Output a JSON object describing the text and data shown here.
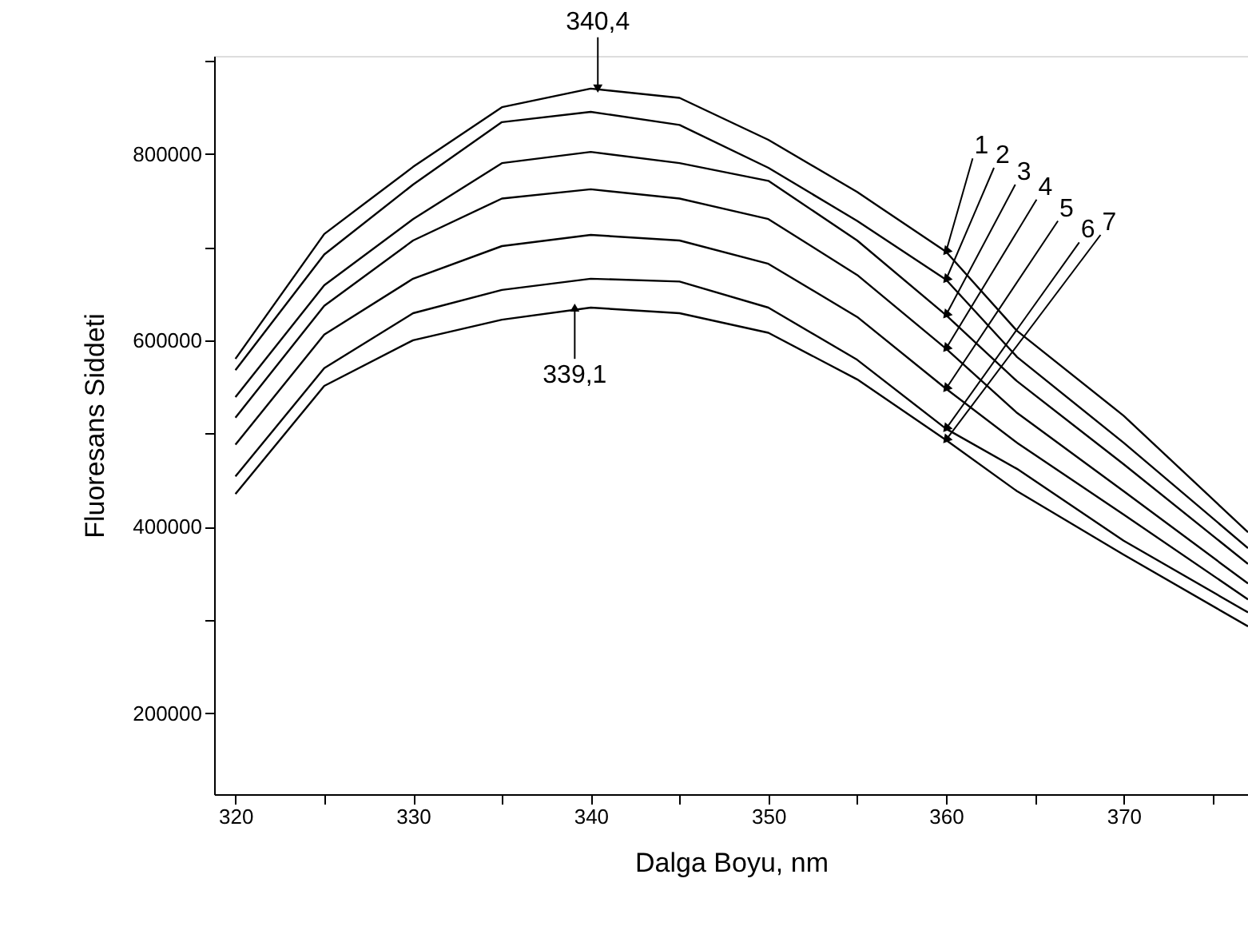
{
  "chart_data": {
    "type": "line",
    "xlabel": "Dalga Boyu, nm",
    "ylabel": "Fluoresans Siddeti",
    "x": [
      320,
      325,
      330,
      335,
      340,
      345,
      350,
      355,
      360,
      364,
      370,
      377
    ],
    "series": [
      {
        "name": "1",
        "color": "#000000",
        "values": [
          580000,
          714000,
          786000,
          850000,
          870000,
          860000,
          815000,
          759000,
          695000,
          610000,
          519000,
          394000
        ]
      },
      {
        "name": "2",
        "color": "#000000",
        "values": [
          568000,
          692000,
          767000,
          834000,
          845000,
          831000,
          785000,
          728000,
          665000,
          582000,
          490000,
          377000
        ]
      },
      {
        "name": "3",
        "color": "#000000",
        "values": [
          539000,
          659000,
          730000,
          790000,
          802000,
          790000,
          771000,
          707000,
          627000,
          556000,
          467000,
          360000
        ]
      },
      {
        "name": "4",
        "color": "#000000",
        "values": [
          517000,
          637000,
          707000,
          752000,
          762000,
          752000,
          730000,
          670000,
          591000,
          522000,
          438000,
          339000
        ]
      },
      {
        "name": "5",
        "color": "#000000",
        "values": [
          488000,
          606000,
          666000,
          701000,
          713000,
          707000,
          682000,
          625000,
          548000,
          490000,
          413000,
          322000
        ]
      },
      {
        "name": "6",
        "color": "#000000",
        "values": [
          454000,
          570000,
          629000,
          654000,
          666000,
          663000,
          635000,
          579000,
          505000,
          462000,
          385000,
          308000
        ]
      },
      {
        "name": "7",
        "color": "#000000",
        "values": [
          435000,
          551000,
          600000,
          622000,
          635000,
          629000,
          608000,
          558000,
          493000,
          438000,
          370000,
          293000
        ]
      }
    ],
    "annotations": [
      {
        "text": "340,4",
        "x": 340.4,
        "y": 870000
      },
      {
        "text": "339,1",
        "x": 339.1,
        "y": 635000
      }
    ],
    "xlim": [
      318.8,
      377
    ],
    "xticks": [
      320,
      {
        "value": 325,
        "label": null
      },
      330,
      {
        "value": 335,
        "label": null
      },
      340,
      {
        "value": 345,
        "label": null
      },
      350,
      {
        "value": 355,
        "label": null
      },
      360,
      {
        "value": 365,
        "label": null
      },
      370,
      {
        "value": 375,
        "label": null
      }
    ],
    "ylim": [
      113000,
      905000
    ],
    "yticks": [
      {
        "value": 200000,
        "label": "200000"
      },
      {
        "value": 300000,
        "label": null
      },
      {
        "value": 400000,
        "label": "400000"
      },
      {
        "value": 500000,
        "label": null
      },
      {
        "value": 600000,
        "label": "600000"
      },
      {
        "value": 700000,
        "label": null
      },
      {
        "value": 800000,
        "label": "800000"
      },
      {
        "value": 900000,
        "label": null
      }
    ],
    "grid": false,
    "legend": false,
    "marker": "none",
    "line_style": "solid"
  }
}
